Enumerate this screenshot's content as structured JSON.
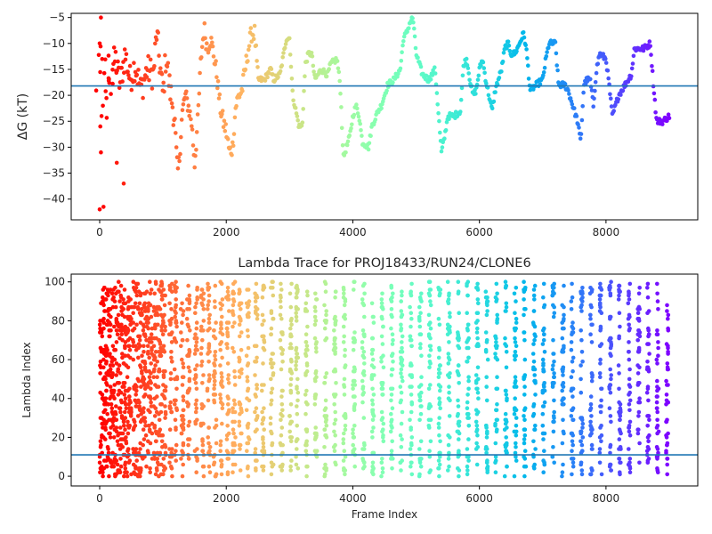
{
  "chart_data": [
    {
      "type": "scatter",
      "title": "",
      "xlabel": "",
      "ylabel": "ΔG (kT)",
      "xlim": [
        -450,
        9450
      ],
      "ylim": [
        -44,
        -4.2
      ],
      "xticks": [
        0,
        2000,
        4000,
        6000,
        8000
      ],
      "xtick_labels": [
        "0",
        "2000",
        "4000",
        "6000",
        "8000"
      ],
      "yticks": [
        -40,
        -35,
        -30,
        -25,
        -20,
        -15,
        -10,
        -5
      ],
      "ytick_labels": [
        "−40",
        "−35",
        "−30",
        "−25",
        "−20",
        "−15",
        "−10",
        "−5"
      ],
      "hline": -18.2,
      "hline_color": "#1f77b4",
      "colormap": "rainbow (red at frame 0 to violet at frame 9000)",
      "grid": false,
      "trace_segments": [
        [
          0,
          -20
        ],
        [
          60,
          -12
        ],
        [
          120,
          -22
        ],
        [
          180,
          -15
        ],
        [
          250,
          -13
        ],
        [
          320,
          -18
        ],
        [
          400,
          -12
        ],
        [
          480,
          -17
        ],
        [
          560,
          -14
        ],
        [
          650,
          -19
        ],
        [
          750,
          -15
        ],
        [
          850,
          -16
        ],
        [
          900,
          -8
        ],
        [
          950,
          -14
        ],
        [
          1000,
          -20
        ],
        [
          1050,
          -12
        ],
        [
          1100,
          -18
        ],
        [
          1180,
          -24
        ],
        [
          1230,
          -35
        ],
        [
          1260,
          -32
        ],
        [
          1300,
          -24
        ],
        [
          1350,
          -20
        ],
        [
          1400,
          -22
        ],
        [
          1450,
          -25
        ],
        [
          1500,
          -33
        ],
        [
          1550,
          -25
        ],
        [
          1600,
          -13
        ],
        [
          1650,
          -7
        ],
        [
          1700,
          -11
        ],
        [
          1750,
          -9
        ],
        [
          1800,
          -12
        ],
        [
          1850,
          -16
        ],
        [
          1900,
          -22
        ],
        [
          1950,
          -25
        ],
        [
          2000,
          -27
        ],
        [
          2050,
          -31
        ],
        [
          2100,
          -30
        ],
        [
          2150,
          -22
        ],
        [
          2200,
          -20
        ],
        [
          2250,
          -19
        ],
        [
          2300,
          -15
        ],
        [
          2350,
          -11
        ],
        [
          2400,
          -8
        ],
        [
          2450,
          -8
        ],
        [
          2500,
          -17
        ],
        [
          2600,
          -17
        ],
        [
          2700,
          -15
        ],
        [
          2750,
          -17
        ],
        [
          2850,
          -16
        ],
        [
          2950,
          -9
        ],
        [
          3000,
          -9
        ],
        [
          3050,
          -20
        ],
        [
          3150,
          -26
        ],
        [
          3200,
          -26
        ],
        [
          3250,
          -14
        ],
        [
          3300,
          -12
        ],
        [
          3350,
          -12
        ],
        [
          3400,
          -17
        ],
        [
          3500,
          -15
        ],
        [
          3600,
          -16
        ],
        [
          3650,
          -14
        ],
        [
          3750,
          -13
        ],
        [
          3800,
          -18
        ],
        [
          3850,
          -32
        ],
        [
          3900,
          -30
        ],
        [
          3950,
          -28
        ],
        [
          4000,
          -24
        ],
        [
          4050,
          -22
        ],
        [
          4100,
          -24
        ],
        [
          4150,
          -29
        ],
        [
          4250,
          -30
        ],
        [
          4300,
          -26
        ],
        [
          4400,
          -23
        ],
        [
          4450,
          -22
        ],
        [
          4550,
          -18
        ],
        [
          4650,
          -17
        ],
        [
          4750,
          -15
        ],
        [
          4800,
          -9
        ],
        [
          4850,
          -8
        ],
        [
          4900,
          -6
        ],
        [
          4950,
          -5
        ],
        [
          5000,
          -12
        ],
        [
          5100,
          -16
        ],
        [
          5200,
          -17
        ],
        [
          5300,
          -15
        ],
        [
          5400,
          -31
        ],
        [
          5450,
          -28
        ],
        [
          5500,
          -24
        ],
        [
          5600,
          -24
        ],
        [
          5700,
          -23
        ],
        [
          5750,
          -14
        ],
        [
          5800,
          -13
        ],
        [
          5850,
          -17
        ],
        [
          5900,
          -20
        ],
        [
          5950,
          -19
        ],
        [
          6000,
          -15
        ],
        [
          6050,
          -13
        ],
        [
          6100,
          -17
        ],
        [
          6150,
          -20
        ],
        [
          6200,
          -23
        ],
        [
          6250,
          -19
        ],
        [
          6300,
          -17
        ],
        [
          6350,
          -15
        ],
        [
          6400,
          -11
        ],
        [
          6450,
          -10
        ],
        [
          6500,
          -12
        ],
        [
          6550,
          -12
        ],
        [
          6600,
          -11
        ],
        [
          6700,
          -8
        ],
        [
          6750,
          -12
        ],
        [
          6800,
          -19
        ],
        [
          6900,
          -18
        ],
        [
          7000,
          -17
        ],
        [
          7050,
          -13
        ],
        [
          7100,
          -10
        ],
        [
          7200,
          -10
        ],
        [
          7250,
          -18
        ],
        [
          7350,
          -18
        ],
        [
          7400,
          -19
        ],
        [
          7450,
          -21
        ],
        [
          7550,
          -25
        ],
        [
          7600,
          -29
        ],
        [
          7650,
          -18
        ],
        [
          7700,
          -17
        ],
        [
          7750,
          -17
        ],
        [
          7800,
          -22
        ],
        [
          7850,
          -15
        ],
        [
          7900,
          -12
        ],
        [
          8000,
          -13
        ],
        [
          8050,
          -18
        ],
        [
          8100,
          -24
        ],
        [
          8200,
          -20
        ],
        [
          8300,
          -18
        ],
        [
          8400,
          -16
        ],
        [
          8450,
          -11
        ],
        [
          8500,
          -11
        ],
        [
          8600,
          -11
        ],
        [
          8700,
          -10
        ],
        [
          8750,
          -18
        ],
        [
          8800,
          -25
        ],
        [
          8900,
          -25
        ],
        [
          9000,
          -24
        ]
      ]
    },
    {
      "type": "scatter",
      "title": "Lambda Trace for PROJ18433/RUN24/CLONE6",
      "xlabel": "Frame Index",
      "ylabel": "Lambda Index",
      "xlim": [
        -450,
        9450
      ],
      "ylim": [
        -5,
        104
      ],
      "xticks": [
        0,
        2000,
        4000,
        6000,
        8000
      ],
      "xtick_labels": [
        "0",
        "2000",
        "4000",
        "6000",
        "8000"
      ],
      "yticks": [
        0,
        20,
        40,
        60,
        80,
        100
      ],
      "ytick_labels": [
        "0",
        "20",
        "40",
        "60",
        "80",
        "100"
      ],
      "hline": 11,
      "hline_color": "#1f77b4",
      "colormap": "rainbow (red at frame 0 to violet at frame 9000)",
      "grid": false,
      "y_range_points": [
        0,
        100
      ],
      "x_range_points": [
        0,
        9000
      ]
    }
  ]
}
